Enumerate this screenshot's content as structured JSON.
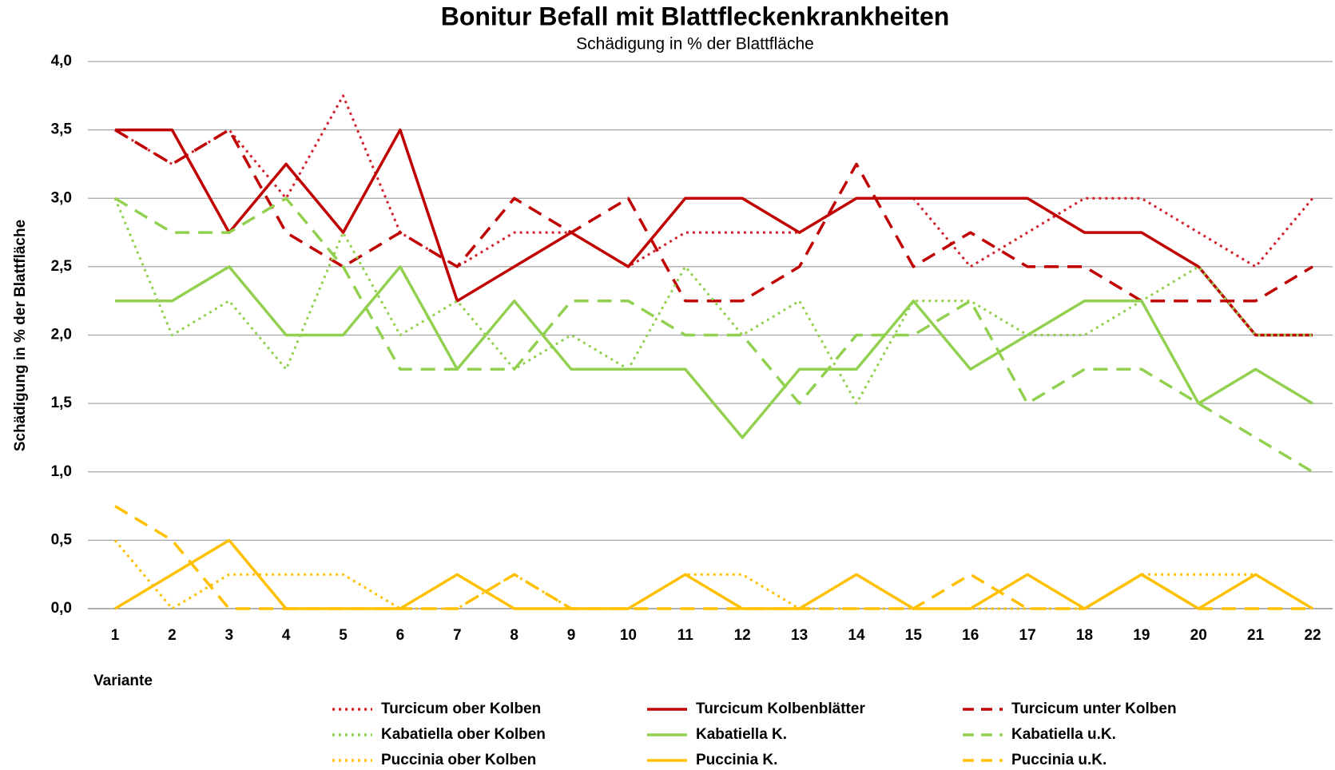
{
  "chart_data": {
    "type": "line",
    "title": "Bonitur Befall mit Blattfleckenkrankheiten",
    "subtitle": "Schädigung in % der Blattfläche",
    "y_label": "Schädigung in % der Blattfläche",
    "x_label": "Variante",
    "categories": [
      "1",
      "2",
      "3",
      "4",
      "5",
      "6",
      "7",
      "8",
      "9",
      "10",
      "11",
      "12",
      "13",
      "14",
      "15",
      "16",
      "17",
      "18",
      "19",
      "20",
      "21",
      "22"
    ],
    "ylim": [
      0,
      4
    ],
    "yticks": [
      {
        "value": 0,
        "label": "0,0"
      },
      {
        "value": 0.5,
        "label": "0,5"
      },
      {
        "value": 1,
        "label": "1,0"
      },
      {
        "value": 1.5,
        "label": "1,5"
      },
      {
        "value": 2,
        "label": "2,0"
      },
      {
        "value": 2.5,
        "label": "2,5"
      },
      {
        "value": 3,
        "label": "3,0"
      },
      {
        "value": 3.5,
        "label": "3,5"
      },
      {
        "value": 4,
        "label": "4,0"
      }
    ],
    "grid": true,
    "legend": "bottom",
    "series": [
      {
        "name": "Turcicum ober Kolben",
        "color": "#d0202a",
        "style": "dotted",
        "values": [
          3.5,
          3.25,
          3.5,
          3.0,
          3.75,
          2.75,
          2.5,
          2.75,
          2.75,
          2.5,
          2.75,
          2.75,
          2.75,
          3.0,
          3.0,
          2.5,
          2.75,
          3.0,
          3.0,
          2.75,
          2.5,
          3.0
        ]
      },
      {
        "name": "Turcicum Kolbenblätter",
        "color": "#c00000",
        "style": "solid",
        "values": [
          3.5,
          3.5,
          2.75,
          3.25,
          2.75,
          3.5,
          2.25,
          2.5,
          2.75,
          2.5,
          3.0,
          3.0,
          2.75,
          3.0,
          3.0,
          3.0,
          3.0,
          2.75,
          2.75,
          2.5,
          2.0,
          2.0
        ]
      },
      {
        "name": "Turcicum unter Kolben",
        "color": "#c00000",
        "style": "dashed",
        "values": [
          3.5,
          3.25,
          3.5,
          2.75,
          2.5,
          2.75,
          2.5,
          3.0,
          2.75,
          3.0,
          2.25,
          2.25,
          2.5,
          3.25,
          2.5,
          2.75,
          2.5,
          2.5,
          2.25,
          2.25,
          2.25,
          2.5
        ]
      },
      {
        "name": "Kabatiella ober Kolben",
        "color": "#92d050",
        "style": "dotted",
        "values": [
          3.0,
          2.0,
          2.25,
          1.75,
          2.75,
          2.0,
          2.25,
          1.75,
          2.0,
          1.75,
          2.5,
          2.0,
          2.25,
          1.5,
          2.25,
          2.25,
          2.0,
          2.0,
          2.25,
          2.5,
          2.0,
          2.0
        ]
      },
      {
        "name": "Kabatiella K.",
        "color": "#92d050",
        "style": "solid",
        "values": [
          2.25,
          2.25,
          2.5,
          2.0,
          2.0,
          2.5,
          1.75,
          2.25,
          1.75,
          1.75,
          1.75,
          1.25,
          1.75,
          1.75,
          2.25,
          1.75,
          2.0,
          2.25,
          2.25,
          1.5,
          1.75,
          1.5
        ]
      },
      {
        "name": "Kabatiella u.K.",
        "color": "#92d050",
        "style": "dashed",
        "values": [
          3.0,
          2.75,
          2.75,
          3.0,
          2.5,
          1.75,
          1.75,
          1.75,
          2.25,
          2.25,
          2.0,
          2.0,
          1.5,
          2.0,
          2.0,
          2.25,
          1.5,
          1.75,
          1.75,
          1.5,
          1.25,
          1.0
        ]
      },
      {
        "name": "Puccinia ober Kolben",
        "color": "#ffc000",
        "style": "dotted",
        "values": [
          0.5,
          0,
          0.25,
          0.25,
          0.25,
          0,
          0,
          0.25,
          0,
          0,
          0.25,
          0.25,
          0,
          0,
          0,
          0,
          0,
          0,
          0.25,
          0.25,
          0.25,
          0
        ]
      },
      {
        "name": "Puccinia K.",
        "color": "#ffc000",
        "style": "solid",
        "values": [
          0,
          0.25,
          0.5,
          0,
          0,
          0,
          0.25,
          0,
          0,
          0,
          0.25,
          0,
          0,
          0.25,
          0,
          0,
          0.25,
          0,
          0.25,
          0,
          0.25,
          0
        ]
      },
      {
        "name": "Puccinia u.K.",
        "color": "#ffc000",
        "style": "dashed",
        "values": [
          0.75,
          0.5,
          0,
          0,
          0,
          0,
          0,
          0.25,
          0,
          0,
          0,
          0,
          0,
          0,
          0,
          0.25,
          0,
          0,
          0.25,
          0,
          0,
          0
        ]
      }
    ]
  }
}
